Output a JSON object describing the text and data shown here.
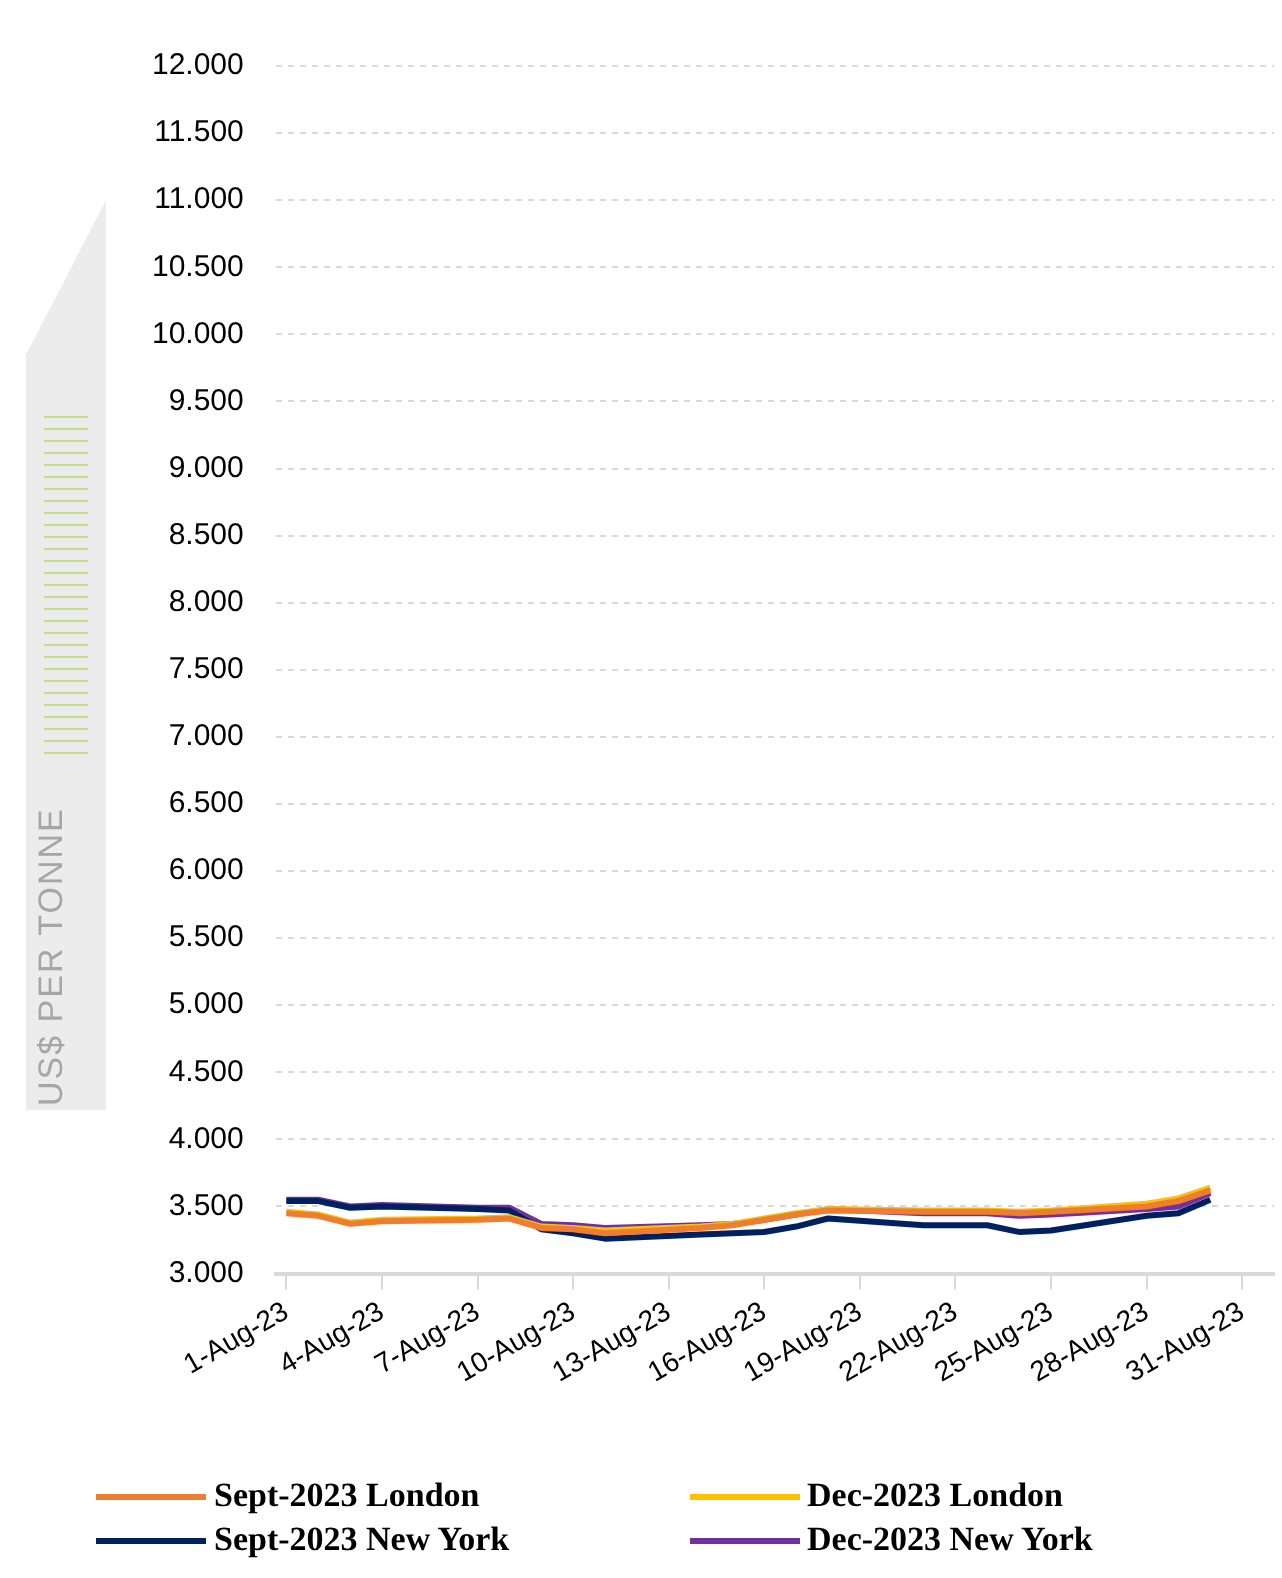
{
  "chart_data": {
    "type": "line",
    "ylabel": "US$ PER TONNE",
    "x": [
      "2023-08-01",
      "2023-08-02",
      "2023-08-03",
      "2023-08-04",
      "2023-08-07",
      "2023-08-08",
      "2023-08-09",
      "2023-08-10",
      "2023-08-11",
      "2023-08-14",
      "2023-08-15",
      "2023-08-16",
      "2023-08-17",
      "2023-08-18",
      "2023-08-21",
      "2023-08-22",
      "2023-08-23",
      "2023-08-24",
      "2023-08-25",
      "2023-08-28",
      "2023-08-29",
      "2023-08-30"
    ],
    "series": [
      {
        "name": "Sept-2023 London",
        "color": "#ed7d31",
        "values": [
          3450,
          3430,
          3370,
          3390,
          3400,
          3410,
          3340,
          3330,
          3300,
          3340,
          3360,
          3400,
          3440,
          3470,
          3460,
          3460,
          3460,
          3450,
          3460,
          3500,
          3540,
          3620
        ]
      },
      {
        "name": "Dec-2023 London",
        "color": "#ffc000",
        "values": [
          3460,
          3440,
          3380,
          3400,
          3410,
          3420,
          3350,
          3340,
          3320,
          3350,
          3370,
          3410,
          3450,
          3480,
          3470,
          3470,
          3470,
          3460,
          3470,
          3520,
          3560,
          3640
        ]
      },
      {
        "name": "Sept-2023 New York",
        "color": "#002060",
        "values": [
          3540,
          3540,
          3490,
          3500,
          3480,
          3470,
          3330,
          3300,
          3260,
          3290,
          3300,
          3310,
          3350,
          3410,
          3360,
          3360,
          3360,
          3310,
          3320,
          3430,
          3450,
          3550
        ]
      },
      {
        "name": "Dec-2023 New York",
        "color": "#7030a0",
        "values": [
          3550,
          3550,
          3500,
          3510,
          3490,
          3490,
          3370,
          3360,
          3340,
          3360,
          3370,
          3400,
          3440,
          3480,
          3450,
          3450,
          3450,
          3430,
          3440,
          3480,
          3500,
          3600
        ]
      }
    ],
    "xlim": [
      "2023-07-31T16:00",
      "2023-09-01T00:00"
    ],
    "xticks": [
      {
        "value": "2023-08-01",
        "label": "1-Aug-23"
      },
      {
        "value": "2023-08-04",
        "label": "4-Aug-23"
      },
      {
        "value": "2023-08-07",
        "label": "7-Aug-23"
      },
      {
        "value": "2023-08-10",
        "label": "10-Aug-23"
      },
      {
        "value": "2023-08-13",
        "label": "13-Aug-23"
      },
      {
        "value": "2023-08-16",
        "label": "16-Aug-23"
      },
      {
        "value": "2023-08-19",
        "label": "19-Aug-23"
      },
      {
        "value": "2023-08-22",
        "label": "22-Aug-23"
      },
      {
        "value": "2023-08-25",
        "label": "25-Aug-23"
      },
      {
        "value": "2023-08-28",
        "label": "28-Aug-23"
      },
      {
        "value": "2023-08-31",
        "label": "31-Aug-23"
      }
    ],
    "ylim": [
      3000,
      12000
    ],
    "yticks": [
      {
        "value": 3000,
        "label": "3.000"
      },
      {
        "value": 3500,
        "label": "3.500"
      },
      {
        "value": 4000,
        "label": "4.000"
      },
      {
        "value": 4500,
        "label": "4.500"
      },
      {
        "value": 5000,
        "label": "5.000"
      },
      {
        "value": 5500,
        "label": "5.500"
      },
      {
        "value": 6000,
        "label": "6.000"
      },
      {
        "value": 6500,
        "label": "6.500"
      },
      {
        "value": 7000,
        "label": "7.000"
      },
      {
        "value": 7500,
        "label": "7.500"
      },
      {
        "value": 8000,
        "label": "8.000"
      },
      {
        "value": 8500,
        "label": "8.500"
      },
      {
        "value": 9000,
        "label": "9.000"
      },
      {
        "value": 9500,
        "label": "9.500"
      },
      {
        "value": 10000,
        "label": "10.000"
      },
      {
        "value": 10500,
        "label": "10.500"
      },
      {
        "value": 11000,
        "label": "11.000"
      },
      {
        "value": 11500,
        "label": "11.500"
      },
      {
        "value": 12000,
        "label": "12.000"
      }
    ],
    "grid": "y",
    "legend": "bottom",
    "marker": "none",
    "line_style": "solid"
  }
}
